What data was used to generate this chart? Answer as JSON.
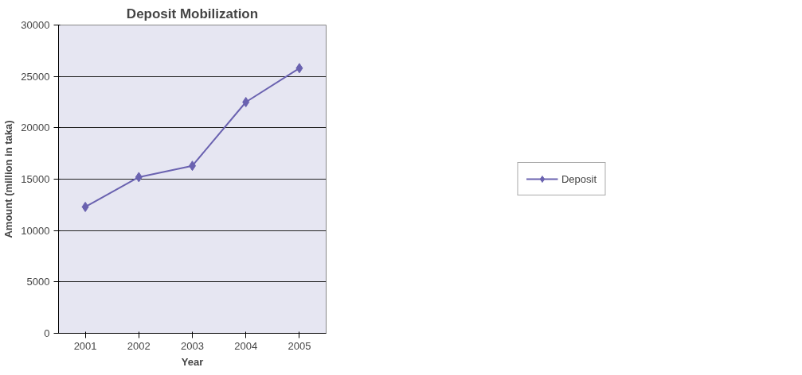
{
  "chart_data": {
    "type": "line",
    "title": "Deposit Mobilization",
    "xlabel": "Year",
    "ylabel": "Amount (million in taka)",
    "categories": [
      "2001",
      "2002",
      "2003",
      "2004",
      "2005"
    ],
    "series": [
      {
        "name": "Deposit",
        "color": "#6a62b0",
        "values": [
          12300,
          15200,
          16300,
          22500,
          25800
        ]
      }
    ],
    "ylim": [
      0,
      30000
    ],
    "yticks": [
      0,
      5000,
      10000,
      15000,
      20000,
      25000,
      30000
    ],
    "grid": "y",
    "legend": "right",
    "marker": "diamond",
    "line_style": "solid"
  }
}
